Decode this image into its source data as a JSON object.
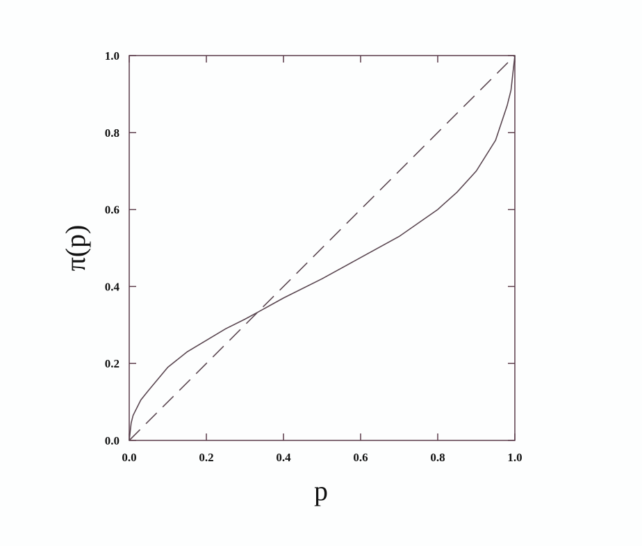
{
  "chart_data": {
    "type": "line",
    "title": "",
    "xlabel": "p",
    "ylabel": "π(p)",
    "xlim": [
      0,
      1
    ],
    "ylim": [
      0,
      1
    ],
    "grid": false,
    "xticks": [
      "0.0",
      "0.2",
      "0.4",
      "0.6",
      "0.8",
      "1.0"
    ],
    "yticks": [
      "0.0",
      "0.2",
      "0.4",
      "0.6",
      "0.8",
      "1.0"
    ],
    "series": [
      {
        "style": "solid",
        "x": [
          0,
          0.005,
          0.01,
          0.03,
          0.05,
          0.1,
          0.15,
          0.2,
          0.25,
          0.3,
          0.333,
          0.4,
          0.5,
          0.6,
          0.7,
          0.8,
          0.85,
          0.9,
          0.95,
          0.98,
          0.99,
          1.0
        ],
        "y": [
          0,
          0.045,
          0.065,
          0.105,
          0.13,
          0.19,
          0.23,
          0.26,
          0.29,
          0.315,
          0.333,
          0.37,
          0.42,
          0.475,
          0.53,
          0.6,
          0.645,
          0.7,
          0.78,
          0.87,
          0.91,
          1.0
        ]
      },
      {
        "style": "dashed",
        "x": [
          0,
          1
        ],
        "y": [
          0,
          1
        ]
      }
    ],
    "colors": {
      "line": "#5a4650",
      "frame": "#5a3a48"
    }
  }
}
